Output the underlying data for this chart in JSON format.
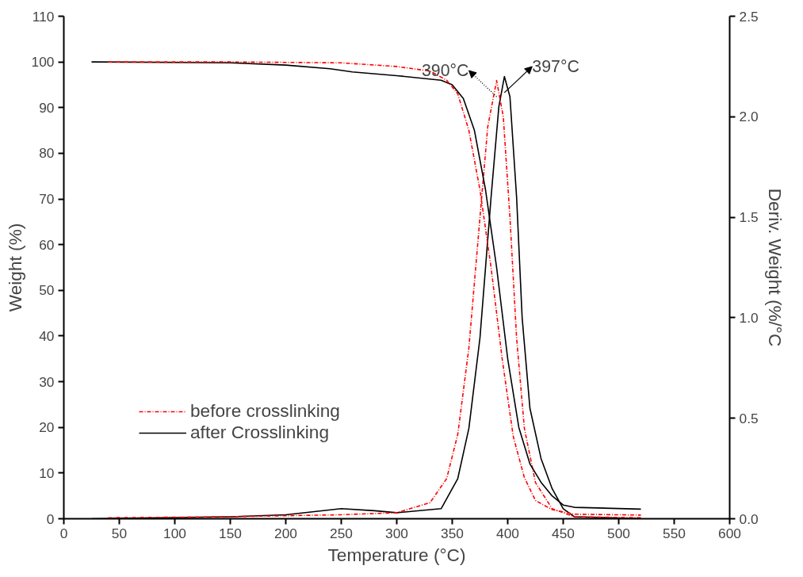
{
  "chart_data": {
    "type": "line",
    "xlabel": "Temperature (°C)",
    "ylabel": "Weight (%)",
    "y2label": "Deriv. Weight (%/°C",
    "xlim": [
      0,
      600
    ],
    "xticks": [
      0,
      50,
      100,
      150,
      200,
      250,
      300,
      350,
      400,
      450,
      500,
      550,
      600
    ],
    "ylim": [
      0,
      110
    ],
    "yticks": [
      0,
      10,
      20,
      30,
      40,
      50,
      60,
      70,
      80,
      90,
      100,
      110
    ],
    "y2lim": [
      0,
      2.5
    ],
    "y2ticks": [
      {
        "value": 0,
        "label": "0.0"
      },
      {
        "value": 0.5,
        "label": "0.5"
      },
      {
        "value": 1,
        "label": "1.0"
      },
      {
        "value": 1.5,
        "label": "1.5"
      },
      {
        "value": 2,
        "label": "2.0"
      },
      {
        "value": 2.5,
        "label": "2.5"
      }
    ],
    "grid": false,
    "legend": "bottom left",
    "series": [
      {
        "name": "before crosslinking",
        "color": "#ff0000",
        "line_style": "dashdot",
        "x": [
          40,
          150,
          250,
          300,
          330,
          345,
          355,
          365,
          375,
          385,
          395,
          405,
          415,
          425,
          440,
          460,
          520
        ],
        "values": [
          100,
          100,
          99.8,
          99,
          98,
          96,
          93,
          85,
          72,
          55,
          35,
          18,
          9,
          4,
          2,
          1,
          0.8
        ]
      },
      {
        "name": "after Crosslinking",
        "color": "#000000",
        "line_style": "solid",
        "x": [
          25,
          150,
          200,
          240,
          260,
          300,
          340,
          350,
          360,
          370,
          380,
          390,
          400,
          410,
          420,
          430,
          440,
          450,
          460,
          520
        ],
        "values": [
          100,
          99.8,
          99.3,
          98.5,
          97.8,
          97,
          96,
          95,
          92,
          85,
          72,
          55,
          35,
          20,
          12,
          8,
          5,
          3,
          2.5,
          2.1
        ]
      },
      {
        "color": "#ff0000",
        "line_style": "dashdot",
        "axis": "y2",
        "x": [
          40,
          150,
          250,
          300,
          330,
          345,
          355,
          365,
          375,
          382,
          390,
          396,
          402,
          408,
          415,
          425,
          440,
          460,
          520
        ],
        "values": [
          0.005,
          0.01,
          0.02,
          0.03,
          0.08,
          0.2,
          0.42,
          0.85,
          1.5,
          1.95,
          2.18,
          2.0,
          1.5,
          0.9,
          0.45,
          0.18,
          0.05,
          0.01,
          0.005
        ]
      },
      {
        "color": "#000000",
        "line_style": "solid",
        "axis": "y2",
        "x": [
          25,
          150,
          200,
          250,
          280,
          300,
          340,
          355,
          365,
          375,
          385,
          392,
          397,
          402,
          408,
          413,
          420,
          430,
          440,
          450,
          460,
          520
        ],
        "values": [
          0,
          0.01,
          0.02,
          0.05,
          0.04,
          0.03,
          0.05,
          0.2,
          0.45,
          0.9,
          1.6,
          2.05,
          2.2,
          2.1,
          1.6,
          1.0,
          0.55,
          0.3,
          0.15,
          0.05,
          0.01,
          0
        ]
      }
    ],
    "annotations": [
      "390°C",
      "397°C"
    ]
  }
}
